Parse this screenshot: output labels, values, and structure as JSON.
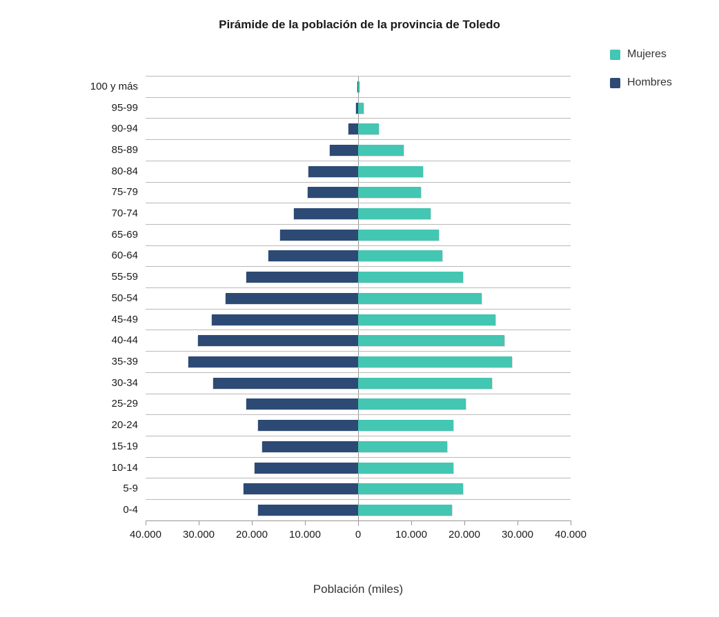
{
  "title": "Pirámide de la población de la provincia de Toledo",
  "x_axis": {
    "label": "Población (miles)",
    "tick_labels": [
      "40.000",
      "30.000",
      "20.000",
      "10.000",
      "0",
      "10.000",
      "20.000",
      "30.000",
      "40.000"
    ]
  },
  "legend": [
    {
      "label": "Mujeres",
      "color": "#43C6B2"
    },
    {
      "label": "Hombres",
      "color": "#2D4A75"
    }
  ],
  "chart_data": {
    "type": "bar",
    "subtype": "population-pyramid",
    "title": "Pirámide de la población de la provincia de Toledo",
    "xlabel": "Población (miles)",
    "category_order": "top-to-bottom",
    "categories": [
      "100 y más",
      "95-99",
      "90-94",
      "85-89",
      "80-84",
      "75-79",
      "70-74",
      "65-69",
      "60-64",
      "55-59",
      "50-54",
      "45-49",
      "40-44",
      "35-39",
      "30-34",
      "25-29",
      "20-24",
      "15-19",
      "10-14",
      "5-9",
      "0-4"
    ],
    "series": [
      {
        "name": "Mujeres",
        "side": "right",
        "color": "#43C6B2",
        "values": [
          280,
          1100,
          3900,
          8600,
          12200,
          11800,
          13600,
          15200,
          15900,
          19700,
          23300,
          25800,
          27500,
          28900,
          25200,
          20200,
          17900,
          16800,
          17900,
          19800,
          17600
        ]
      },
      {
        "name": "Hombres",
        "side": "left",
        "color": "#2D4A75",
        "values": [
          120,
          400,
          1800,
          5300,
          9300,
          9500,
          12100,
          14700,
          16900,
          21100,
          25000,
          27500,
          30100,
          32000,
          27300,
          21100,
          18800,
          18000,
          19500,
          21500,
          18800
        ]
      }
    ],
    "xlim": [
      -40000,
      40000
    ],
    "x_tick_interval": 10000,
    "grid": "horizontal-row-separators",
    "zero_axis": true,
    "legend_position": "top-right"
  }
}
